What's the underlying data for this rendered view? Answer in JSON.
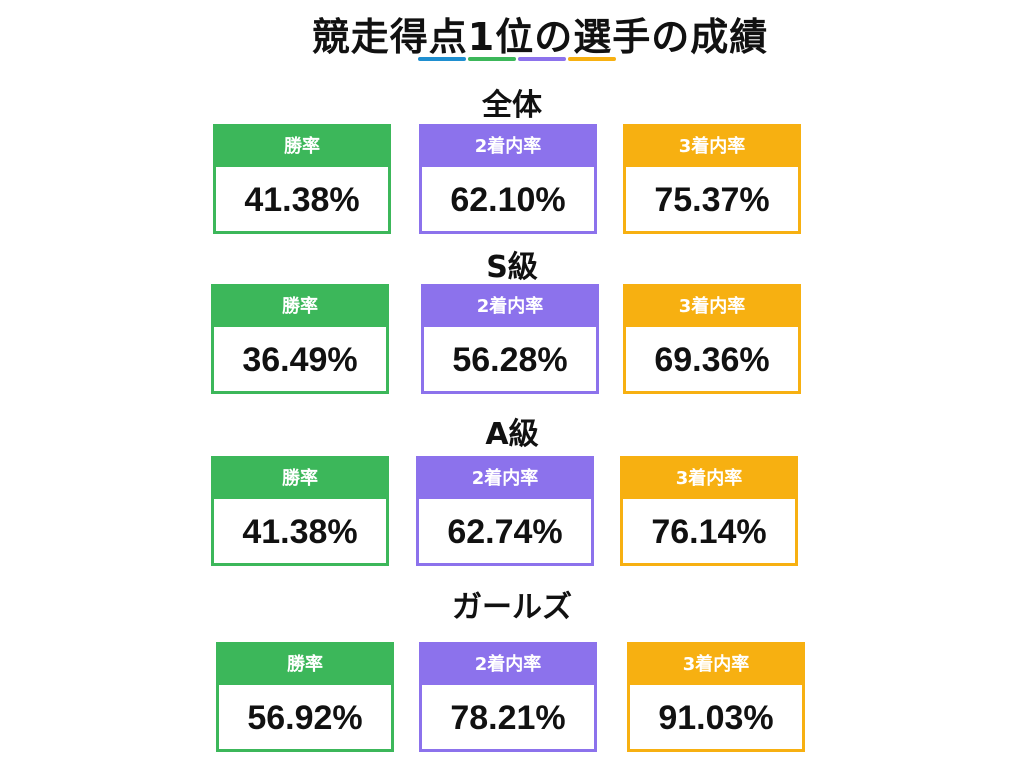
{
  "title": "競走得点1位の選手の成績",
  "accent_colors": {
    "blue": "#1f8fd0",
    "green": "#3cb75a",
    "purple": "#8c72ec",
    "orange": "#f7b011"
  },
  "sections": [
    {
      "name": "全体",
      "cards": [
        {
          "label": "勝率",
          "value": "41.38%"
        },
        {
          "label": "2着内率",
          "value": "62.10%"
        },
        {
          "label": "3着内率",
          "value": "75.37%"
        }
      ]
    },
    {
      "name": "S級",
      "cards": [
        {
          "label": "勝率",
          "value": "36.49%"
        },
        {
          "label": "2着内率",
          "value": "56.28%"
        },
        {
          "label": "3着内率",
          "value": "69.36%"
        }
      ]
    },
    {
      "name": "A級",
      "cards": [
        {
          "label": "勝率",
          "value": "41.38%"
        },
        {
          "label": "2着内率",
          "value": "62.74%"
        },
        {
          "label": "3着内率",
          "value": "76.14%"
        }
      ]
    },
    {
      "name": "ガールズ",
      "cards": [
        {
          "label": "勝率",
          "value": "56.92%"
        },
        {
          "label": "2着内率",
          "value": "78.21%"
        },
        {
          "label": "3着内率",
          "value": "91.03%"
        }
      ]
    }
  ]
}
